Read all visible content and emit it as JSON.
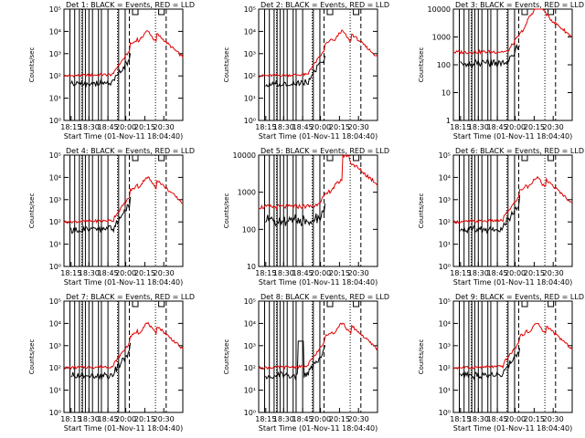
{
  "chart_data": {
    "type": "line",
    "title_template": "{det}: BLACK = Events, RED = LLD",
    "xlabel": "Start Time (01-Nov-11 18:04:40)",
    "ylabel": "Counts/sec",
    "x_tick_labels": [
      "18:15",
      "18:30",
      "18:45",
      "20:00",
      "20:15",
      "20:30"
    ],
    "series_names": {
      "black": "Events",
      "red": "LLD"
    },
    "colors": {
      "black": "#000000",
      "red": "#e00000"
    },
    "panels": [
      {
        "det": "Det 1",
        "y_ticks": [
          "10⁰",
          "10¹",
          "10²",
          "10³",
          "10⁴",
          "10⁵"
        ],
        "ylim_log": [
          0,
          5
        ],
        "variant": "standard"
      },
      {
        "det": "Det 2",
        "y_ticks": [
          "10⁰",
          "10¹",
          "10²",
          "10³",
          "10⁴",
          "10⁵"
        ],
        "ylim_log": [
          0,
          5
        ],
        "variant": "standard"
      },
      {
        "det": "Det 3",
        "y_ticks": [
          "1",
          "10",
          "100",
          "1000",
          "10000"
        ],
        "ylim_log": [
          0,
          4
        ],
        "variant": "det3"
      },
      {
        "det": "Det 4",
        "y_ticks": [
          "10⁰",
          "10¹",
          "10²",
          "10³",
          "10⁴",
          "10⁵"
        ],
        "ylim_log": [
          0,
          5
        ],
        "variant": "standard"
      },
      {
        "det": "Det 5",
        "y_ticks": [
          "10",
          "100",
          "1000",
          "10000"
        ],
        "ylim_log": [
          1,
          4
        ],
        "variant": "det5"
      },
      {
        "det": "Det 6",
        "y_ticks": [
          "10⁰",
          "10¹",
          "10²",
          "10³",
          "10⁴",
          "10⁵"
        ],
        "ylim_log": [
          0,
          5
        ],
        "variant": "standard"
      },
      {
        "det": "Det 7",
        "y_ticks": [
          "10⁰",
          "10¹",
          "10²",
          "10³",
          "10⁴",
          "10⁵"
        ],
        "ylim_log": [
          0,
          5
        ],
        "variant": "standard"
      },
      {
        "det": "Det 8",
        "y_ticks": [
          "10⁰",
          "10¹",
          "10²",
          "10³",
          "10⁴",
          "10⁵"
        ],
        "ylim_log": [
          0,
          5
        ],
        "variant": "det8"
      },
      {
        "det": "Det 9",
        "y_ticks": [
          "10⁰",
          "10¹",
          "10²",
          "10³",
          "10⁴",
          "10⁵"
        ],
        "ylim_log": [
          0,
          5
        ],
        "variant": "standard"
      }
    ]
  }
}
